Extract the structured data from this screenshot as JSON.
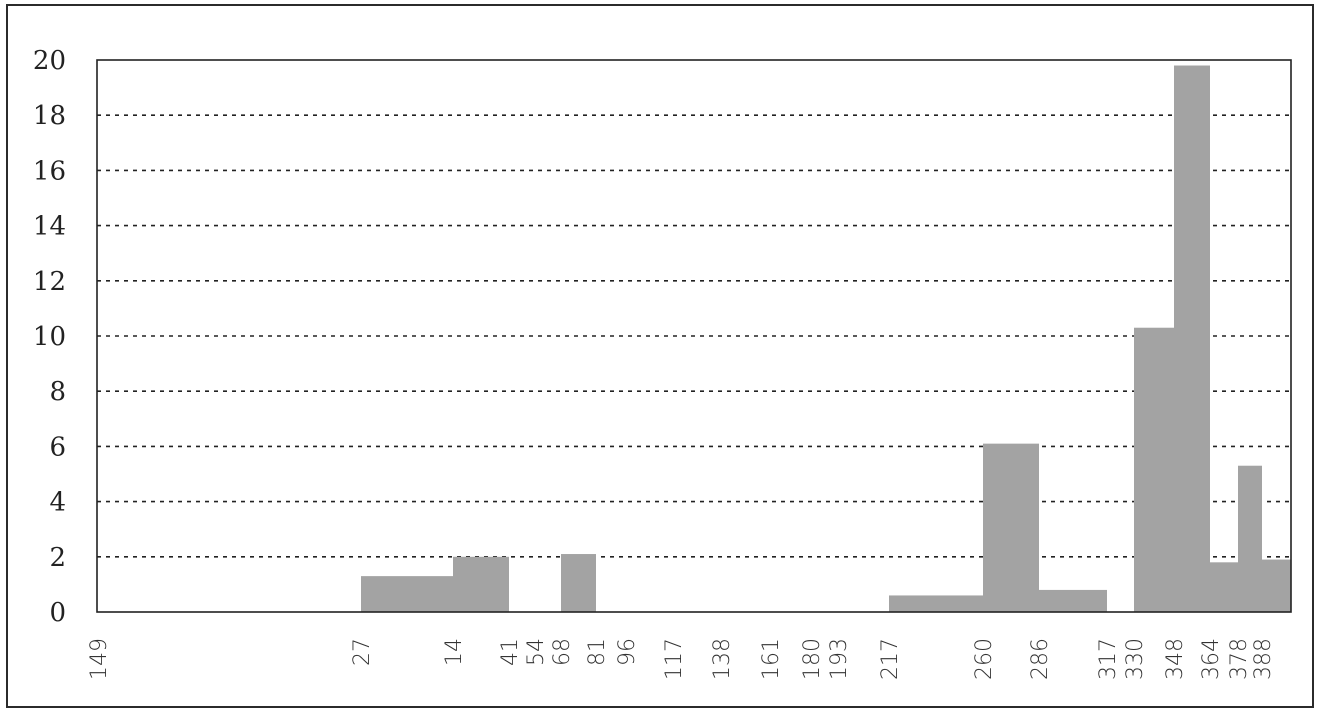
{
  "chart_data": {
    "type": "bar",
    "title": "",
    "xlabel": "",
    "ylabel": "",
    "ylim": [
      0,
      20
    ],
    "yticks": [
      0,
      2,
      4,
      6,
      8,
      10,
      12,
      14,
      16,
      18,
      20
    ],
    "grid": "horizontal dotted",
    "bar_color": "#a3a3a3",
    "x_tick_labels": [
      "149",
      "27",
      "14",
      "41",
      "54",
      "68",
      "81",
      "96",
      "117",
      "138",
      "161",
      "180",
      "193",
      "217",
      "260",
      "286",
      "317",
      "330",
      "348",
      "364",
      "378",
      "388"
    ],
    "bars": [
      {
        "from": "27",
        "to": "14",
        "value": 1.3
      },
      {
        "from": "14",
        "to": "41",
        "value": 2
      },
      {
        "from": "68",
        "to": "81",
        "value": 2.1
      },
      {
        "from": "217",
        "to": "260",
        "value": 0.6
      },
      {
        "from": "260",
        "to": "286",
        "value": 6.1
      },
      {
        "from": "286",
        "to": "317",
        "value": 0.8
      },
      {
        "from": "330",
        "to": "348",
        "value": 10.3
      },
      {
        "from": "348",
        "to": "364",
        "value": 19.8
      },
      {
        "from": "364",
        "to": "378",
        "value": 1.8
      },
      {
        "from": "378",
        "to": "388",
        "value": 5.3
      },
      {
        "from": "388",
        "to": "end",
        "value": 1.9
      }
    ]
  }
}
